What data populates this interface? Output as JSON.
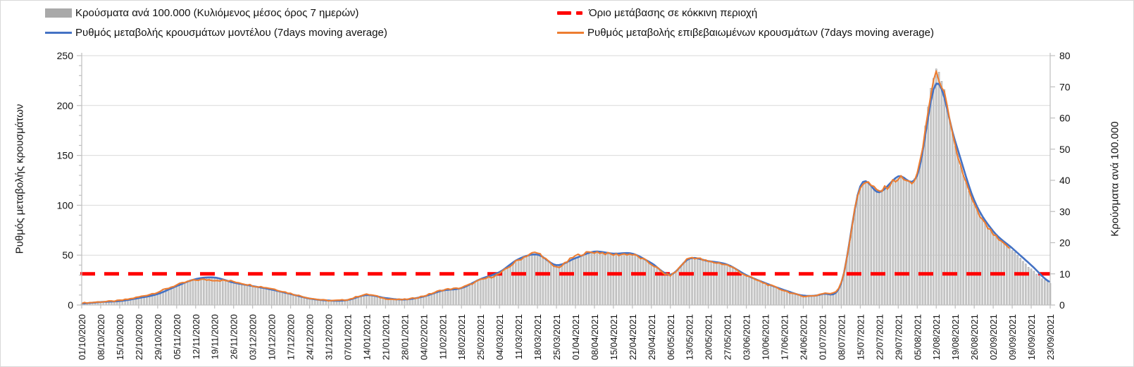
{
  "legend": {
    "items": [
      {
        "id": "cases-bars",
        "label": "Κρούσματα ανά 100.000 (Κυλιόμενος μέσος όρος 7 ημερών)",
        "swatch": "bar",
        "color": "#A9A9A9"
      },
      {
        "id": "threshold",
        "label": "Όριο μετάβασης σε κόκκινη περιοχή",
        "swatch": "dash",
        "color": "#FF0000"
      },
      {
        "id": "model-line",
        "label": "Ρυθμός μεταβολής κρουσμάτων μοντέλου (7days moving average)",
        "swatch": "line",
        "color": "#4472C4"
      },
      {
        "id": "confirmed-line",
        "label": "Ρυθμός μεταβολής επιβεβαιωμένων κρουσμάτων (7days moving average)",
        "swatch": "line",
        "color": "#ED7D31"
      }
    ]
  },
  "chart_data": {
    "type": "combo-bar-line",
    "title": "",
    "grid": "horizontal",
    "left_axis": {
      "title": "Ρυθμός μεταβολής κρουσμάτων",
      "min": 0,
      "max": 250,
      "tick_step": 50,
      "minor_step": 10,
      "tick_labels": [
        "0",
        "50",
        "100",
        "150",
        "200",
        "250"
      ]
    },
    "right_axis": {
      "title": "Κρούσματα ανά 100.000",
      "min": 0,
      "max": 80,
      "tick_step": 10,
      "tick_labels": [
        "0",
        "10",
        "20",
        "30",
        "40",
        "50",
        "60",
        "70",
        "80"
      ]
    },
    "threshold": {
      "label": "Όριο μετάβασης σε κόκκινη περιοχή",
      "value": 10,
      "axis": "right",
      "color": "#FF0000"
    },
    "x_labels": [
      "01/10/2020",
      "08/10/2020",
      "15/10/2020",
      "22/10/2020",
      "29/10/2020",
      "05/11/2020",
      "12/11/2020",
      "19/11/2020",
      "26/11/2020",
      "03/12/2020",
      "10/12/2020",
      "17/12/2020",
      "24/12/2020",
      "31/12/2020",
      "07/01/2021",
      "14/01/2021",
      "21/01/2021",
      "28/01/2021",
      "04/02/2021",
      "11/02/2021",
      "18/02/2021",
      "25/02/2021",
      "04/03/2021",
      "11/03/2021",
      "18/03/2021",
      "25/03/2021",
      "01/04/2021",
      "08/04/2021",
      "15/04/2021",
      "22/04/2021",
      "29/04/2021",
      "06/05/2021",
      "13/05/2021",
      "20/05/2021",
      "27/05/2021",
      "03/06/2021",
      "10/06/2021",
      "17/06/2021",
      "24/06/2021",
      "01/07/2021",
      "08/07/2021",
      "15/07/2021",
      "22/07/2021",
      "29/07/2021",
      "05/08/2021",
      "12/08/2021",
      "19/08/2021",
      "26/08/2021",
      "02/09/2021",
      "09/09/2021",
      "16/09/2021",
      "23/09/2021"
    ],
    "series": [
      {
        "name": "Κρούσματα ανά 100.000 (Κυλιόμενος μέσος όρος 7 ημερών)",
        "type": "bar",
        "axis": "right",
        "color": "#CFCFCF",
        "stroke": "#9A9A9A",
        "values": [
          0.5,
          1,
          1.4,
          2.4,
          4,
          6.2,
          8.3,
          8.6,
          7.3,
          6.1,
          5,
          3.6,
          2.1,
          1.4,
          1.6,
          3.2,
          2.2,
          1.8,
          2.8,
          4.7,
          5.5,
          8.2,
          10.3,
          14.5,
          16.3,
          12.5,
          15,
          17.1,
          16.5,
          16.4,
          13.3,
          9.7,
          15,
          14.1,
          13,
          9.6,
          7,
          4.8,
          3,
          3.6,
          6.8,
          38,
          36.3,
          41,
          42,
          75,
          51,
          32.5,
          23.5,
          17.7,
          11.5,
          7
        ]
      },
      {
        "name": "Ρυθμός μεταβολής κρουσμάτων μοντέλου (7days moving average)",
        "type": "line",
        "axis": "left",
        "color": "#4472C4",
        "values": [
          1.5,
          3,
          4,
          7,
          11,
          19,
          26,
          27.5,
          22.5,
          19,
          15.5,
          11,
          6.5,
          4.5,
          5,
          10,
          7,
          5.5,
          8.5,
          14.5,
          17,
          26,
          33,
          46,
          50.5,
          40,
          47,
          53.5,
          51.5,
          51.5,
          42,
          30.5,
          46.5,
          44,
          40.5,
          30,
          22,
          15,
          9.5,
          11,
          22,
          119,
          113,
          129,
          130,
          222,
          164,
          105,
          74,
          57,
          40,
          23
        ]
      },
      {
        "name": "Ρυθμός μεταβολής επιβεβαιωμένων κρουσμάτων (7days moving average)",
        "type": "line",
        "axis": "left",
        "color": "#ED7D31",
        "values": [
          2,
          3.2,
          4.5,
          8,
          13,
          20,
          25,
          25,
          23.5,
          19.5,
          16.5,
          11.5,
          7,
          4.5,
          5.5,
          10.5,
          6.5,
          5.5,
          9,
          15,
          17.5,
          25,
          31.5,
          45,
          52,
          38,
          49,
          53,
          50.5,
          50.5,
          41,
          30,
          47,
          43.5,
          40,
          29.5,
          21.5,
          14.5,
          9,
          11.5,
          23,
          118,
          114,
          127,
          131,
          230,
          158,
          100,
          71,
          56,
          null,
          null
        ]
      }
    ]
  }
}
